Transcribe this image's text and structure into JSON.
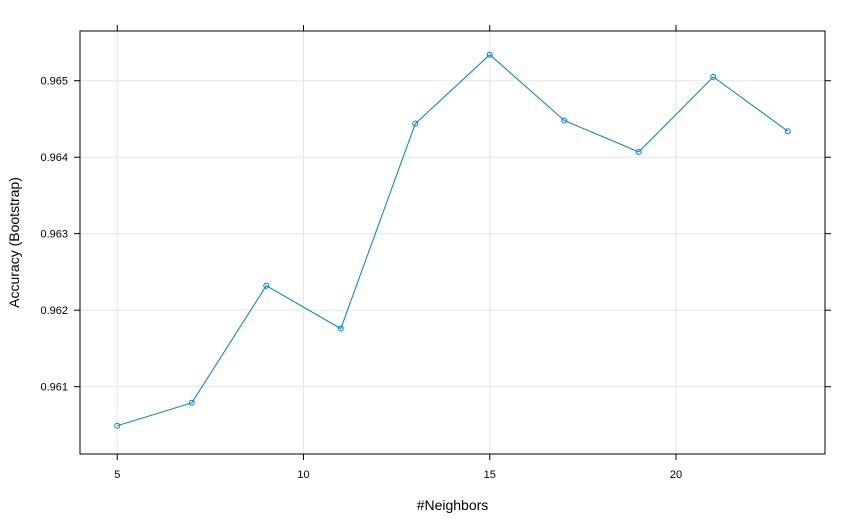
{
  "chart_data": {
    "type": "line",
    "title": "",
    "xlabel": "#Neighbors",
    "ylabel": "Accuracy (Bootstrap)",
    "xlim": [
      4.0,
      24.0
    ],
    "ylim": [
      0.96012,
      0.96565
    ],
    "x_ticks": [
      5,
      10,
      15,
      20
    ],
    "x_tick_labels": [
      "5",
      "10",
      "15",
      "20"
    ],
    "y_ticks": [
      0.961,
      0.962,
      0.963,
      0.964,
      0.965
    ],
    "y_tick_labels": [
      "0.961",
      "0.962",
      "0.963",
      "0.964",
      "0.965"
    ],
    "grid": true,
    "marker": "open-circle",
    "line_color": "#0080c8",
    "grid_color": "#e6e6e6",
    "series": [
      {
        "x": [
          5,
          7,
          9,
          11,
          13,
          15,
          17,
          19,
          21,
          23
        ],
        "values": [
          0.96049,
          0.96079,
          0.96232,
          0.96176,
          0.96444,
          0.96534,
          0.96448,
          0.96407,
          0.96505,
          0.96434
        ]
      }
    ]
  }
}
